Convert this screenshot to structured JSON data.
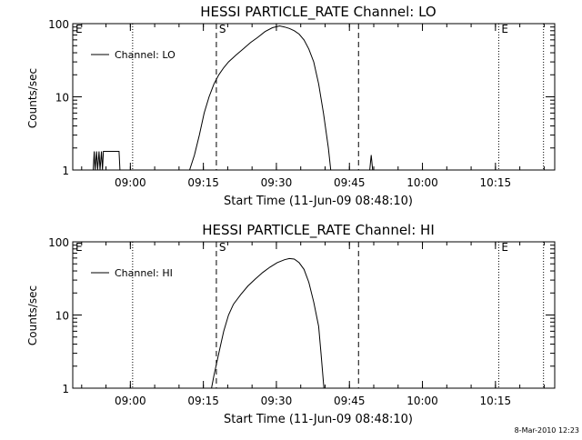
{
  "footer": {
    "timestamp": "8-Mar-2010 12:23"
  },
  "chart_data": [
    {
      "type": "line",
      "title": "HESSI PARTICLE_RATE Channel: LO",
      "xlabel": "Start Time (11-Jun-09 08:48:10)",
      "ylabel": "Counts/sec",
      "x_unit": "minutes since 08:48:10",
      "xlim": [
        0,
        99
      ],
      "ylim": [
        1,
        100
      ],
      "yscale": "log",
      "x_ticks": [
        {
          "x": 11.83,
          "label": "09:00"
        },
        {
          "x": 26.83,
          "label": "09:15"
        },
        {
          "x": 41.83,
          "label": "09:30"
        },
        {
          "x": 56.83,
          "label": "09:45"
        },
        {
          "x": 71.83,
          "label": "10:00"
        },
        {
          "x": 86.83,
          "label": "10:15"
        }
      ],
      "y_ticks": [
        {
          "y": 1,
          "label": "1"
        },
        {
          "y": 10,
          "label": "10"
        },
        {
          "y": 100,
          "label": "100"
        }
      ],
      "legend": {
        "position": "top-left",
        "entries": [
          "Channel: LO"
        ]
      },
      "markers": [
        {
          "x": 0,
          "label": "E",
          "style": "dotted"
        },
        {
          "x": 12.3,
          "label": "",
          "style": "dotted"
        },
        {
          "x": 29.5,
          "label": "S",
          "style": "dashed"
        },
        {
          "x": 58.7,
          "label": "",
          "style": "dashed"
        },
        {
          "x": 87.5,
          "label": "E",
          "style": "dotted"
        },
        {
          "x": 96.7,
          "label": "",
          "style": "dotted"
        }
      ],
      "series": [
        {
          "name": "Channel: LO",
          "points": [
            [
              4.2,
              1.0
            ],
            [
              4.4,
              1.8
            ],
            [
              4.6,
              1.0
            ],
            [
              4.9,
              1.8
            ],
            [
              5.1,
              1.0
            ],
            [
              5.4,
              1.8
            ],
            [
              5.6,
              1.0
            ],
            [
              5.9,
              1.8
            ],
            [
              6.1,
              1.0
            ],
            [
              6.3,
              1.8
            ],
            [
              7.0,
              1.8
            ],
            [
              7.9,
              1.8
            ],
            [
              8.8,
              1.8
            ],
            [
              9.5,
              1.8
            ],
            [
              9.7,
              1.0
            ],
            [
              24.0,
              1.0
            ],
            [
              25.0,
              1.6
            ],
            [
              26.0,
              3.0
            ],
            [
              27.0,
              6.0
            ],
            [
              28.0,
              10.0
            ],
            [
              29.0,
              15.0
            ],
            [
              30.0,
              20.0
            ],
            [
              31.0,
              25.0
            ],
            [
              32.0,
              30.0
            ],
            [
              33.5,
              37.0
            ],
            [
              35.0,
              45.0
            ],
            [
              36.5,
              55.0
            ],
            [
              38.0,
              65.0
            ],
            [
              39.5,
              78.0
            ],
            [
              41.0,
              88.0
            ],
            [
              42.5,
              93.0
            ],
            [
              43.5,
              90.0
            ],
            [
              44.5,
              86.0
            ],
            [
              45.5,
              80.0
            ],
            [
              46.5,
              72.0
            ],
            [
              47.5,
              60.0
            ],
            [
              48.5,
              45.0
            ],
            [
              49.5,
              30.0
            ],
            [
              50.5,
              15.0
            ],
            [
              51.5,
              6.0
            ],
            [
              52.5,
              2.0
            ],
            [
              53.0,
              1.0
            ],
            [
              61.0,
              1.0
            ],
            [
              61.3,
              1.6
            ],
            [
              61.6,
              1.0
            ]
          ]
        }
      ]
    },
    {
      "type": "line",
      "title": "HESSI PARTICLE_RATE Channel: HI",
      "xlabel": "Start Time (11-Jun-09 08:48:10)",
      "ylabel": "Counts/sec",
      "x_unit": "minutes since 08:48:10",
      "xlim": [
        0,
        99
      ],
      "ylim": [
        1,
        100
      ],
      "yscale": "log",
      "x_ticks": [
        {
          "x": 11.83,
          "label": "09:00"
        },
        {
          "x": 26.83,
          "label": "09:15"
        },
        {
          "x": 41.83,
          "label": "09:30"
        },
        {
          "x": 56.83,
          "label": "09:45"
        },
        {
          "x": 71.83,
          "label": "10:00"
        },
        {
          "x": 86.83,
          "label": "10:15"
        }
      ],
      "y_ticks": [
        {
          "y": 1,
          "label": "1"
        },
        {
          "y": 10,
          "label": "10"
        },
        {
          "y": 100,
          "label": "100"
        }
      ],
      "legend": {
        "position": "top-left",
        "entries": [
          "Channel: HI"
        ]
      },
      "markers": [
        {
          "x": 0,
          "label": "E",
          "style": "dotted"
        },
        {
          "x": 12.3,
          "label": "",
          "style": "dotted"
        },
        {
          "x": 29.5,
          "label": "S",
          "style": "dashed"
        },
        {
          "x": 58.7,
          "label": "",
          "style": "dashed"
        },
        {
          "x": 87.5,
          "label": "E",
          "style": "dotted"
        },
        {
          "x": 96.7,
          "label": "",
          "style": "dotted"
        }
      ],
      "series": [
        {
          "name": "Channel: HI",
          "points": [
            [
              28.5,
              1.0
            ],
            [
              29.0,
              1.5
            ],
            [
              30.0,
              3.0
            ],
            [
              31.0,
              6.0
            ],
            [
              32.0,
              10.0
            ],
            [
              33.0,
              14.0
            ],
            [
              34.5,
              19.0
            ],
            [
              36.0,
              25.0
            ],
            [
              37.5,
              31.0
            ],
            [
              39.0,
              38.0
            ],
            [
              40.5,
              45.0
            ],
            [
              42.0,
              52.0
            ],
            [
              43.5,
              57.0
            ],
            [
              44.5,
              59.0
            ],
            [
              45.5,
              58.0
            ],
            [
              46.5,
              52.0
            ],
            [
              47.5,
              42.0
            ],
            [
              48.5,
              28.0
            ],
            [
              49.5,
              15.0
            ],
            [
              50.5,
              7.0
            ],
            [
              51.0,
              3.0
            ],
            [
              51.6,
              1.0
            ]
          ]
        }
      ]
    }
  ]
}
